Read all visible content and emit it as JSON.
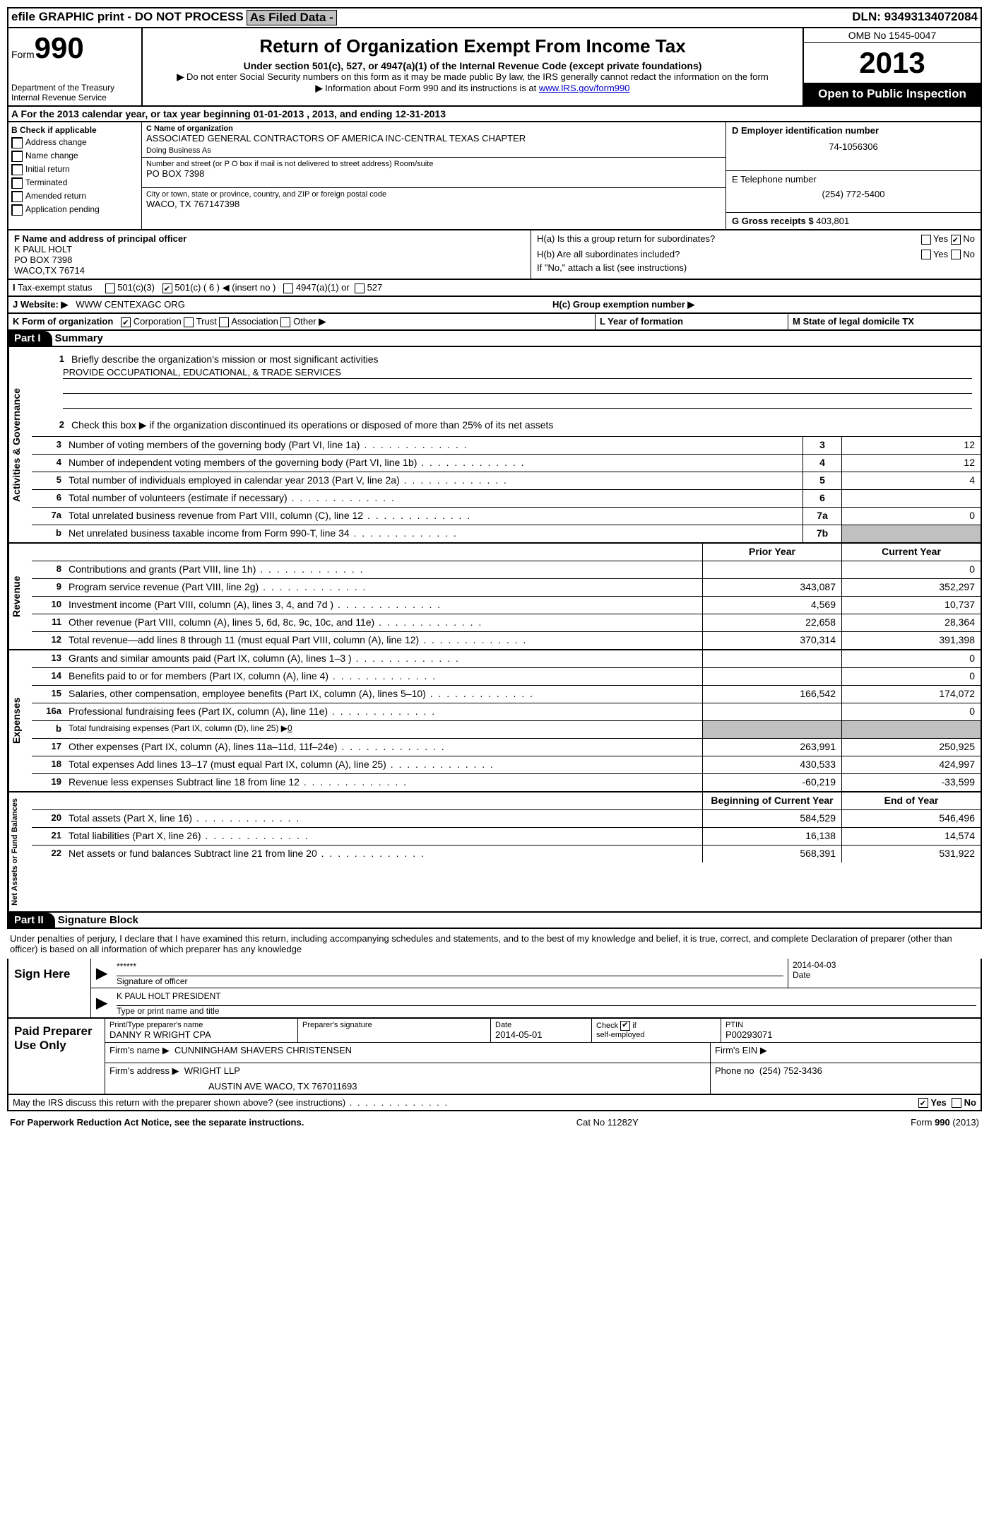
{
  "topbar": {
    "efile": "efile GRAPHIC print - DO NOT PROCESS",
    "asfiled": "As Filed Data -",
    "dln_label": "DLN:",
    "dln": "93493134072084"
  },
  "header": {
    "form_label": "Form",
    "form_no": "990",
    "dept1": "Department of the Treasury",
    "dept2": "Internal Revenue Service",
    "title": "Return of Organization Exempt From Income Tax",
    "sub": "Under section 501(c), 527, or 4947(a)(1) of the Internal Revenue Code (except private foundations)",
    "note1": "Do not enter Social Security numbers on this form as it may be made public  By law, the IRS generally cannot redact the information on the form",
    "note2_pre": "Information about Form 990 and its instructions is at ",
    "note2_link": "www.IRS.gov/form990",
    "omb": "OMB No  1545-0047",
    "year": "2013",
    "pub": "Open to Public Inspection"
  },
  "row_a": "A  For the 2013 calendar year, or tax year beginning 01-01-2013     , 2013, and ending 12-31-2013",
  "col_b": {
    "hdr": "B  Check if applicable",
    "items": [
      "Address change",
      "Name change",
      "Initial return",
      "Terminated",
      "Amended return",
      "Application pending"
    ]
  },
  "col_c": {
    "name_lbl": "C Name of organization",
    "name": "ASSOCIATED GENERAL CONTRACTORS OF AMERICA INC-CENTRAL TEXAS CHAPTER",
    "dba_lbl": "Doing Business As",
    "addr_lbl": "Number and street (or P O  box if mail is not delivered to street address)  Room/suite",
    "addr": "PO BOX 7398",
    "city_lbl": "City or town, state or province, country, and ZIP or foreign postal code",
    "city": "WACO, TX  767147398"
  },
  "col_d": {
    "ein_lbl": "D Employer identification number",
    "ein": "74-1056306",
    "tel_lbl": "E Telephone number",
    "tel": "(254) 772-5400",
    "gross_lbl": "G Gross receipts $",
    "gross": "403,801"
  },
  "fh": {
    "f_lbl": "F    Name and address of principal officer",
    "f_name": "K PAUL HOLT",
    "f_addr1": "PO BOX 7398",
    "f_addr2": "WACO,TX 76714",
    "ha": "H(a)  Is this a group return for subordinates?",
    "hb": "H(b)  Are all subordinates included?",
    "hb_note": "If \"No,\" attach a list  (see instructions)",
    "hc": "H(c)   Group exemption number"
  },
  "row_i": {
    "lbl": "Tax-exempt status",
    "o1": "501(c)(3)",
    "o2": "501(c) ( 6 )",
    "o2b": "(insert no )",
    "o3": "4947(a)(1) or",
    "o4": "527"
  },
  "row_j": {
    "lbl": "Website:",
    "val": "WWW CENTEXAGC ORG"
  },
  "row_k": {
    "lbl": "K Form of organization",
    "o1": "Corporation",
    "o2": "Trust",
    "o3": "Association",
    "o4": "Other"
  },
  "row_l": "L Year of formation",
  "row_m": "M State of legal domicile  TX",
  "part1": {
    "num": "Part I",
    "title": "Summary"
  },
  "act": {
    "l1_lbl": "Briefly describe the organization's mission or most significant activities",
    "l1_val": "PROVIDE OCCUPATIONAL, EDUCATIONAL, & TRADE SERVICES",
    "l2": "Check this box ▶      if the organization discontinued its operations or disposed of more than 25% of its net assets",
    "l3": "Number of voting members of the governing body (Part VI, line 1a)",
    "l4": "Number of independent voting members of the governing body (Part VI, line 1b)",
    "l5": "Total number of individuals employed in calendar year 2013 (Part V, line 2a)",
    "l6": "Total number of volunteers (estimate if necessary)",
    "l7a": "Total unrelated business revenue from Part VIII, column (C), line 12",
    "l7b": "Net unrelated business taxable income from Form 990-T, line 34",
    "v3": "12",
    "v4": "12",
    "v5": "4",
    "v6": "",
    "v7a": "0",
    "v7b": ""
  },
  "rev_hdr_prior": "Prior Year",
  "rev_hdr_curr": "Current Year",
  "rev": [
    {
      "n": "8",
      "d": "Contributions and grants (Part VIII, line 1h)",
      "p": "",
      "c": "0"
    },
    {
      "n": "9",
      "d": "Program service revenue (Part VIII, line 2g)",
      "p": "343,087",
      "c": "352,297"
    },
    {
      "n": "10",
      "d": "Investment income (Part VIII, column (A), lines 3, 4, and 7d )",
      "p": "4,569",
      "c": "10,737"
    },
    {
      "n": "11",
      "d": "Other revenue (Part VIII, column (A), lines 5, 6d, 8c, 9c, 10c, and 11e)",
      "p": "22,658",
      "c": "28,364"
    },
    {
      "n": "12",
      "d": "Total revenue—add lines 8 through 11 (must equal Part VIII, column (A), line 12)",
      "p": "370,314",
      "c": "391,398"
    }
  ],
  "exp": [
    {
      "n": "13",
      "d": "Grants and similar amounts paid (Part IX, column (A), lines 1–3 )",
      "p": "",
      "c": "0"
    },
    {
      "n": "14",
      "d": "Benefits paid to or for members (Part IX, column (A), line 4)",
      "p": "",
      "c": "0"
    },
    {
      "n": "15",
      "d": "Salaries, other compensation, employee benefits (Part IX, column (A), lines 5–10)",
      "p": "166,542",
      "c": "174,072"
    },
    {
      "n": "16a",
      "d": "Professional fundraising fees (Part IX, column (A), line 11e)",
      "p": "",
      "c": "0"
    },
    {
      "n": "b",
      "d": "Total fundraising expenses (Part IX, column (D), line 25) ▶",
      "p": "grey",
      "c": "grey",
      "small": true,
      "u": "0"
    },
    {
      "n": "17",
      "d": "Other expenses (Part IX, column (A), lines 11a–11d, 11f–24e)",
      "p": "263,991",
      "c": "250,925"
    },
    {
      "n": "18",
      "d": "Total expenses  Add lines 13–17 (must equal Part IX, column (A), line 25)",
      "p": "430,533",
      "c": "424,997"
    },
    {
      "n": "19",
      "d": "Revenue less expenses  Subtract line 18 from line 12",
      "p": "-60,219",
      "c": "-33,599"
    }
  ],
  "na_hdr_beg": "Beginning of Current Year",
  "na_hdr_end": "End of Year",
  "na": [
    {
      "n": "20",
      "d": "Total assets (Part X, line 16)",
      "p": "584,529",
      "c": "546,496"
    },
    {
      "n": "21",
      "d": "Total liabilities (Part X, line 26)",
      "p": "16,138",
      "c": "14,574"
    },
    {
      "n": "22",
      "d": "Net assets or fund balances  Subtract line 21 from line 20",
      "p": "568,391",
      "c": "531,922"
    }
  ],
  "part2": {
    "num": "Part II",
    "title": "Signature Block"
  },
  "sig_decl": "Under penalties of perjury, I declare that I have examined this return, including accompanying schedules and statements, and to the best of my knowledge and belief, it is true, correct, and complete  Declaration of preparer (other than officer) is based on all information of which preparer has any knowledge",
  "sign": {
    "left": "Sign Here",
    "stars": "******",
    "sig_lbl": "Signature of officer",
    "date": "2014-04-03",
    "date_lbl": "Date",
    "name": "K PAUL HOLT PRESIDENT",
    "name_lbl": "Type or print name and title"
  },
  "paid": {
    "left": "Paid Preparer Use Only",
    "prep_name_lbl": "Print/Type preparer's name",
    "prep_name": "DANNY R WRIGHT CPA",
    "prep_sig_lbl": "Preparer's signature",
    "pdate_lbl": "Date",
    "pdate": "2014-05-01",
    "chk_lbl": "Check      if self-employed",
    "ptin_lbl": "PTIN",
    "ptin": "P00293071",
    "firm_lbl": "Firm's name     ▶",
    "firm": "CUNNINGHAM SHAVERS CHRISTENSEN",
    "ein_lbl": "Firm's EIN ▶",
    "addr_lbl": "Firm's address ▶",
    "addr1": "WRIGHT LLP",
    "addr2": "AUSTIN AVE WACO, TX  767011693",
    "phone_lbl": "Phone no",
    "phone": "(254) 752-3436"
  },
  "discuss": "May the IRS discuss this return with the preparer shown above? (see instructions)",
  "footer": {
    "left": "For Paperwork Reduction Act Notice, see the separate instructions.",
    "mid": "Cat No  11282Y",
    "right": "Form 990 (2013)"
  },
  "yes": "Yes",
  "no": "No",
  "side_labels": {
    "act": "Activities & Governance",
    "rev": "Revenue",
    "exp": "Expenses",
    "na": "Net Assets or Fund Balances"
  }
}
